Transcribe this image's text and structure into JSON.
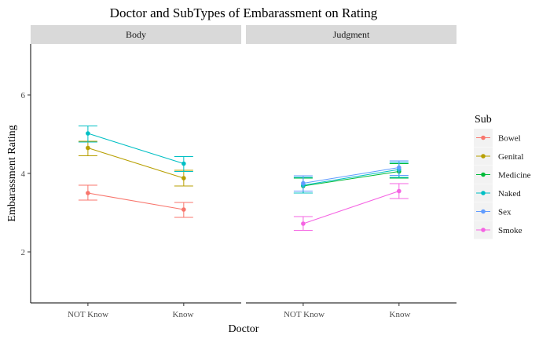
{
  "chart_data": {
    "type": "line",
    "title": "Doctor and SubTypes of Embarassment on Rating",
    "xlabel": "Doctor",
    "ylabel": "Embarassment Rating",
    "categories": [
      "NOT Know",
      "Know"
    ],
    "ylim": [
      0.7,
      7.3
    ],
    "yticks": [
      2,
      4,
      6
    ],
    "grid": false,
    "legend": {
      "title": "Sub",
      "position": "right"
    },
    "panels": [
      {
        "name": "Body",
        "series": [
          {
            "name": "Bowel",
            "values": [
              3.5,
              3.08
            ],
            "error": [
              [
                3.32,
                3.7
              ],
              [
                2.88,
                3.26
              ]
            ]
          },
          {
            "name": "Genital",
            "values": [
              4.65,
              3.88
            ],
            "error": [
              [
                4.45,
                4.82
              ],
              [
                3.68,
                4.08
              ]
            ]
          },
          {
            "name": "Naked",
            "values": [
              5.02,
              4.25
            ],
            "error": [
              [
                4.8,
                5.21
              ],
              [
                4.05,
                4.43
              ]
            ]
          }
        ]
      },
      {
        "name": "Judgment",
        "series": [
          {
            "name": "Medicine",
            "values": [
              3.68,
              4.05
            ],
            "error": [
              [
                3.5,
                3.88
              ],
              [
                3.88,
                4.25
              ]
            ]
          },
          {
            "name": "Naked",
            "values": [
              3.7,
              4.1
            ],
            "error": [
              [
                3.5,
                3.9
              ],
              [
                3.9,
                4.28
              ]
            ]
          },
          {
            "name": "Sex",
            "values": [
              3.75,
              4.15
            ],
            "error": [
              [
                3.55,
                3.94
              ],
              [
                3.95,
                4.32
              ]
            ]
          },
          {
            "name": "Smoke",
            "values": [
              2.72,
              3.55
            ],
            "error": [
              [
                2.55,
                2.9
              ],
              [
                3.36,
                3.74
              ]
            ]
          }
        ]
      }
    ],
    "legend_entries": [
      "Bowel",
      "Genital",
      "Medicine",
      "Naked",
      "Sex",
      "Smoke"
    ],
    "colors": {
      "Bowel": "#F8766D",
      "Genital": "#B79F00",
      "Medicine": "#00BA38",
      "Naked": "#00BFC4",
      "Sex": "#619CFF",
      "Smoke": "#F564E3"
    },
    "strip_background": "#D9D9D9",
    "legend_key_background": "#F2F2F2"
  }
}
